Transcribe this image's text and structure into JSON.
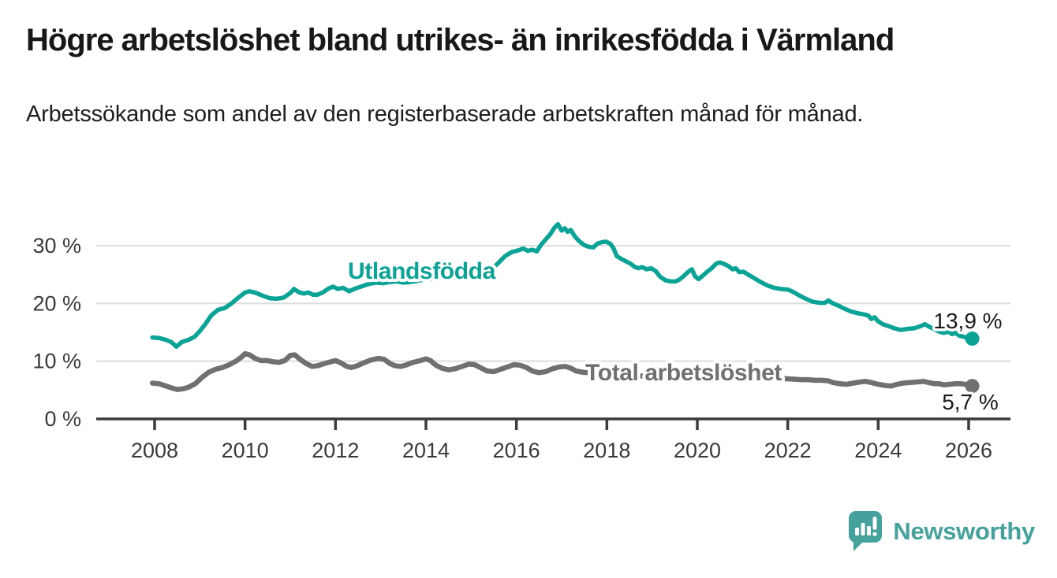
{
  "header": {
    "title": "Högre arbetslöshet bland utrikes- än inrikesfödda i Värmland",
    "subtitle": "Arbetssökande som andel av den registerbaserade arbetskraften månad för månad."
  },
  "chart_data": {
    "type": "line",
    "title": "Högre arbetslöshet bland utrikes- än inrikesfödda i Värmland",
    "subtitle": "Arbetssökande som andel av den registerbaserade arbetskraften månad för månad.",
    "grid": true,
    "legend_position": "inline-labels",
    "x_axis": {
      "ticks": [
        {
          "value": 2008,
          "label": "2008"
        },
        {
          "value": 2010,
          "label": "2010"
        },
        {
          "value": 2012,
          "label": "2012"
        },
        {
          "value": 2014,
          "label": "2014"
        },
        {
          "value": 2016,
          "label": "2016"
        },
        {
          "value": 2018,
          "label": "2018"
        },
        {
          "value": 2020,
          "label": "2020"
        },
        {
          "value": 2022,
          "label": "2022"
        },
        {
          "value": 2024,
          "label": "2024"
        },
        {
          "value": 2026,
          "label": "2026"
        }
      ],
      "range": [
        2006.7,
        2026.9
      ]
    },
    "y_axis": {
      "unit": "%",
      "ticks": [
        {
          "value": 0,
          "label": "0 %"
        },
        {
          "value": 10,
          "label": "10 %"
        },
        {
          "value": 20,
          "label": "20 %"
        },
        {
          "value": 30,
          "label": "30 %"
        }
      ],
      "range": [
        0,
        35.5
      ]
    },
    "series": [
      {
        "name": "Utlandsfödda",
        "color": "#0aa396",
        "end_value_label": "13,9 %",
        "end_value": 13.9,
        "points": [
          [
            2007.95,
            14.1
          ],
          [
            2008.1,
            14.0
          ],
          [
            2008.25,
            13.7
          ],
          [
            2008.37,
            13.3
          ],
          [
            2008.48,
            12.5
          ],
          [
            2008.6,
            13.3
          ],
          [
            2008.75,
            13.7
          ],
          [
            2008.88,
            14.2
          ],
          [
            2009.0,
            15.2
          ],
          [
            2009.12,
            16.4
          ],
          [
            2009.25,
            17.9
          ],
          [
            2009.4,
            18.9
          ],
          [
            2009.55,
            19.2
          ],
          [
            2009.7,
            20.0
          ],
          [
            2009.85,
            21.0
          ],
          [
            2010.0,
            21.9
          ],
          [
            2010.1,
            22.1
          ],
          [
            2010.25,
            21.8
          ],
          [
            2010.4,
            21.3
          ],
          [
            2010.55,
            20.9
          ],
          [
            2010.7,
            20.8
          ],
          [
            2010.85,
            21.0
          ],
          [
            2011.0,
            21.8
          ],
          [
            2011.08,
            22.5
          ],
          [
            2011.2,
            21.9
          ],
          [
            2011.3,
            21.7
          ],
          [
            2011.4,
            21.9
          ],
          [
            2011.5,
            21.5
          ],
          [
            2011.6,
            21.5
          ],
          [
            2011.72,
            21.9
          ],
          [
            2011.85,
            22.6
          ],
          [
            2011.95,
            22.9
          ],
          [
            2012.05,
            22.5
          ],
          [
            2012.17,
            22.7
          ],
          [
            2012.3,
            22.1
          ],
          [
            2012.45,
            22.6
          ],
          [
            2012.6,
            23.0
          ],
          [
            2012.75,
            23.4
          ],
          [
            2012.9,
            23.6
          ],
          [
            2013.05,
            23.5
          ],
          [
            2013.2,
            23.7
          ],
          [
            2013.35,
            23.8
          ],
          [
            2013.5,
            23.6
          ],
          [
            2013.65,
            23.7
          ],
          [
            2013.8,
            23.9
          ],
          [
            2013.95,
            24.1
          ],
          [
            2014.1,
            24.2
          ],
          [
            2014.25,
            24.4
          ],
          [
            2014.4,
            24.6
          ],
          [
            2014.55,
            24.5
          ],
          [
            2014.7,
            24.4
          ],
          [
            2014.85,
            24.6
          ],
          [
            2015.0,
            24.9
          ],
          [
            2015.15,
            25.1
          ],
          [
            2015.3,
            25.4
          ],
          [
            2015.45,
            25.9
          ],
          [
            2015.6,
            27.0
          ],
          [
            2015.75,
            28.2
          ],
          [
            2015.9,
            28.9
          ],
          [
            2016.05,
            29.2
          ],
          [
            2016.15,
            29.5
          ],
          [
            2016.25,
            29.1
          ],
          [
            2016.35,
            29.3
          ],
          [
            2016.45,
            29.0
          ],
          [
            2016.55,
            30.2
          ],
          [
            2016.65,
            31.1
          ],
          [
            2016.75,
            32.0
          ],
          [
            2016.85,
            33.2
          ],
          [
            2016.92,
            33.7
          ],
          [
            2017.0,
            32.6
          ],
          [
            2017.07,
            33.0
          ],
          [
            2017.13,
            32.4
          ],
          [
            2017.2,
            32.7
          ],
          [
            2017.3,
            31.5
          ],
          [
            2017.4,
            30.7
          ],
          [
            2017.5,
            30.1
          ],
          [
            2017.6,
            29.8
          ],
          [
            2017.7,
            29.7
          ],
          [
            2017.8,
            30.4
          ],
          [
            2017.9,
            30.6
          ],
          [
            2017.98,
            30.7
          ],
          [
            2018.08,
            30.3
          ],
          [
            2018.15,
            29.5
          ],
          [
            2018.22,
            28.2
          ],
          [
            2018.32,
            27.7
          ],
          [
            2018.42,
            27.3
          ],
          [
            2018.52,
            26.9
          ],
          [
            2018.62,
            26.3
          ],
          [
            2018.7,
            26.1
          ],
          [
            2018.78,
            26.3
          ],
          [
            2018.88,
            25.9
          ],
          [
            2018.98,
            26.1
          ],
          [
            2019.08,
            25.6
          ],
          [
            2019.18,
            24.6
          ],
          [
            2019.3,
            24.0
          ],
          [
            2019.42,
            23.8
          ],
          [
            2019.52,
            23.8
          ],
          [
            2019.62,
            24.2
          ],
          [
            2019.72,
            24.9
          ],
          [
            2019.82,
            25.6
          ],
          [
            2019.88,
            25.9
          ],
          [
            2019.95,
            24.7
          ],
          [
            2020.03,
            24.2
          ],
          [
            2020.12,
            24.8
          ],
          [
            2020.22,
            25.5
          ],
          [
            2020.32,
            26.1
          ],
          [
            2020.42,
            26.9
          ],
          [
            2020.5,
            27.1
          ],
          [
            2020.6,
            26.8
          ],
          [
            2020.68,
            26.5
          ],
          [
            2020.78,
            25.9
          ],
          [
            2020.85,
            26.1
          ],
          [
            2020.93,
            25.4
          ],
          [
            2021.02,
            25.5
          ],
          [
            2021.12,
            25.0
          ],
          [
            2021.25,
            24.4
          ],
          [
            2021.4,
            23.7
          ],
          [
            2021.55,
            23.1
          ],
          [
            2021.7,
            22.7
          ],
          [
            2021.85,
            22.5
          ],
          [
            2022.0,
            22.4
          ],
          [
            2022.12,
            22.0
          ],
          [
            2022.25,
            21.4
          ],
          [
            2022.4,
            20.8
          ],
          [
            2022.55,
            20.3
          ],
          [
            2022.7,
            20.1
          ],
          [
            2022.82,
            20.1
          ],
          [
            2022.9,
            20.5
          ],
          [
            2023.0,
            20.0
          ],
          [
            2023.12,
            19.6
          ],
          [
            2023.25,
            19.1
          ],
          [
            2023.4,
            18.6
          ],
          [
            2023.55,
            18.3
          ],
          [
            2023.68,
            18.1
          ],
          [
            2023.78,
            17.9
          ],
          [
            2023.85,
            17.3
          ],
          [
            2023.92,
            17.6
          ],
          [
            2024.0,
            16.9
          ],
          [
            2024.1,
            16.4
          ],
          [
            2024.22,
            16.1
          ],
          [
            2024.35,
            15.7
          ],
          [
            2024.5,
            15.4
          ],
          [
            2024.65,
            15.6
          ],
          [
            2024.8,
            15.7
          ],
          [
            2024.95,
            16.1
          ],
          [
            2025.03,
            16.4
          ],
          [
            2025.12,
            16.0
          ],
          [
            2025.25,
            15.5
          ],
          [
            2025.35,
            15.1
          ],
          [
            2025.45,
            14.9
          ],
          [
            2025.55,
            15.1
          ],
          [
            2025.63,
            14.7
          ],
          [
            2025.71,
            14.9
          ],
          [
            2025.8,
            14.4
          ],
          [
            2025.9,
            14.2
          ],
          [
            2026.0,
            14.0
          ],
          [
            2026.08,
            13.9
          ]
        ]
      },
      {
        "name": "Total arbetslöshet",
        "color": "#707070",
        "end_value_label": "5,7 %",
        "end_value": 5.7,
        "points": [
          [
            2007.95,
            6.2
          ],
          [
            2008.1,
            6.1
          ],
          [
            2008.25,
            5.7
          ],
          [
            2008.4,
            5.3
          ],
          [
            2008.5,
            5.1
          ],
          [
            2008.62,
            5.2
          ],
          [
            2008.75,
            5.5
          ],
          [
            2008.9,
            6.1
          ],
          [
            2009.05,
            7.2
          ],
          [
            2009.2,
            8.1
          ],
          [
            2009.35,
            8.6
          ],
          [
            2009.5,
            8.9
          ],
          [
            2009.65,
            9.4
          ],
          [
            2009.8,
            10.0
          ],
          [
            2009.92,
            10.7
          ],
          [
            2010.0,
            11.3
          ],
          [
            2010.1,
            11.1
          ],
          [
            2010.22,
            10.5
          ],
          [
            2010.35,
            10.1
          ],
          [
            2010.5,
            10.1
          ],
          [
            2010.62,
            9.9
          ],
          [
            2010.75,
            9.8
          ],
          [
            2010.88,
            10.1
          ],
          [
            2011.0,
            11.0
          ],
          [
            2011.1,
            11.1
          ],
          [
            2011.22,
            10.3
          ],
          [
            2011.35,
            9.6
          ],
          [
            2011.48,
            9.1
          ],
          [
            2011.6,
            9.2
          ],
          [
            2011.72,
            9.5
          ],
          [
            2011.85,
            9.8
          ],
          [
            2012.0,
            10.1
          ],
          [
            2012.12,
            9.7
          ],
          [
            2012.25,
            9.1
          ],
          [
            2012.35,
            8.9
          ],
          [
            2012.48,
            9.2
          ],
          [
            2012.62,
            9.7
          ],
          [
            2012.78,
            10.2
          ],
          [
            2012.95,
            10.5
          ],
          [
            2013.08,
            10.3
          ],
          [
            2013.2,
            9.6
          ],
          [
            2013.32,
            9.2
          ],
          [
            2013.45,
            9.1
          ],
          [
            2013.58,
            9.4
          ],
          [
            2013.72,
            9.8
          ],
          [
            2013.88,
            10.1
          ],
          [
            2014.0,
            10.4
          ],
          [
            2014.1,
            10.1
          ],
          [
            2014.22,
            9.3
          ],
          [
            2014.35,
            8.8
          ],
          [
            2014.5,
            8.5
          ],
          [
            2014.65,
            8.7
          ],
          [
            2014.8,
            9.1
          ],
          [
            2014.95,
            9.5
          ],
          [
            2015.08,
            9.4
          ],
          [
            2015.2,
            8.9
          ],
          [
            2015.35,
            8.3
          ],
          [
            2015.5,
            8.2
          ],
          [
            2015.65,
            8.6
          ],
          [
            2015.8,
            9.0
          ],
          [
            2015.95,
            9.4
          ],
          [
            2016.08,
            9.3
          ],
          [
            2016.22,
            8.9
          ],
          [
            2016.35,
            8.3
          ],
          [
            2016.5,
            8.0
          ],
          [
            2016.65,
            8.2
          ],
          [
            2016.8,
            8.7
          ],
          [
            2016.95,
            9.0
          ],
          [
            2017.08,
            9.1
          ],
          [
            2017.2,
            8.8
          ],
          [
            2017.32,
            8.3
          ],
          [
            2017.45,
            8.1
          ],
          [
            2017.6,
            8.0
          ],
          [
            2017.75,
            8.2
          ],
          [
            2017.9,
            8.3
          ],
          [
            2018.1,
            8.2
          ],
          [
            2018.3,
            7.9
          ],
          [
            2018.5,
            7.6
          ],
          [
            2018.7,
            7.4
          ],
          [
            2018.9,
            7.5
          ],
          [
            2019.1,
            7.4
          ],
          [
            2019.3,
            7.2
          ],
          [
            2019.5,
            7.0
          ],
          [
            2019.7,
            7.1
          ],
          [
            2019.9,
            7.3
          ],
          [
            2020.1,
            7.6
          ],
          [
            2020.3,
            8.1
          ],
          [
            2020.5,
            8.4
          ],
          [
            2020.7,
            8.3
          ],
          [
            2020.9,
            8.0
          ],
          [
            2021.1,
            7.8
          ],
          [
            2021.3,
            7.6
          ],
          [
            2021.5,
            7.3
          ],
          [
            2021.7,
            7.1
          ],
          [
            2021.9,
            7.0
          ],
          [
            2022.1,
            6.9
          ],
          [
            2022.3,
            6.8
          ],
          [
            2022.45,
            6.8
          ],
          [
            2022.6,
            6.7
          ],
          [
            2022.75,
            6.7
          ],
          [
            2022.9,
            6.6
          ],
          [
            2023.0,
            6.3
          ],
          [
            2023.15,
            6.1
          ],
          [
            2023.3,
            6.0
          ],
          [
            2023.45,
            6.2
          ],
          [
            2023.6,
            6.4
          ],
          [
            2023.72,
            6.5
          ],
          [
            2023.85,
            6.3
          ],
          [
            2024.0,
            6.0
          ],
          [
            2024.15,
            5.8
          ],
          [
            2024.28,
            5.7
          ],
          [
            2024.42,
            6.0
          ],
          [
            2024.55,
            6.2
          ],
          [
            2024.7,
            6.3
          ],
          [
            2024.85,
            6.4
          ],
          [
            2025.0,
            6.5
          ],
          [
            2025.12,
            6.3
          ],
          [
            2025.25,
            6.1
          ],
          [
            2025.35,
            6.1
          ],
          [
            2025.45,
            5.9
          ],
          [
            2025.58,
            6.0
          ],
          [
            2025.7,
            6.1
          ],
          [
            2025.82,
            6.1
          ],
          [
            2025.92,
            6.0
          ],
          [
            2026.0,
            5.9
          ],
          [
            2026.08,
            5.7
          ]
        ]
      }
    ],
    "colors": {
      "grid": "#dcdcdc",
      "axis": "#3b3b3b",
      "axis_text": "#3a3a3a",
      "value_label_text": "#1a1a1a"
    }
  },
  "footer": {
    "brand": "Newsworthy",
    "brand_color": "#44a19c"
  }
}
